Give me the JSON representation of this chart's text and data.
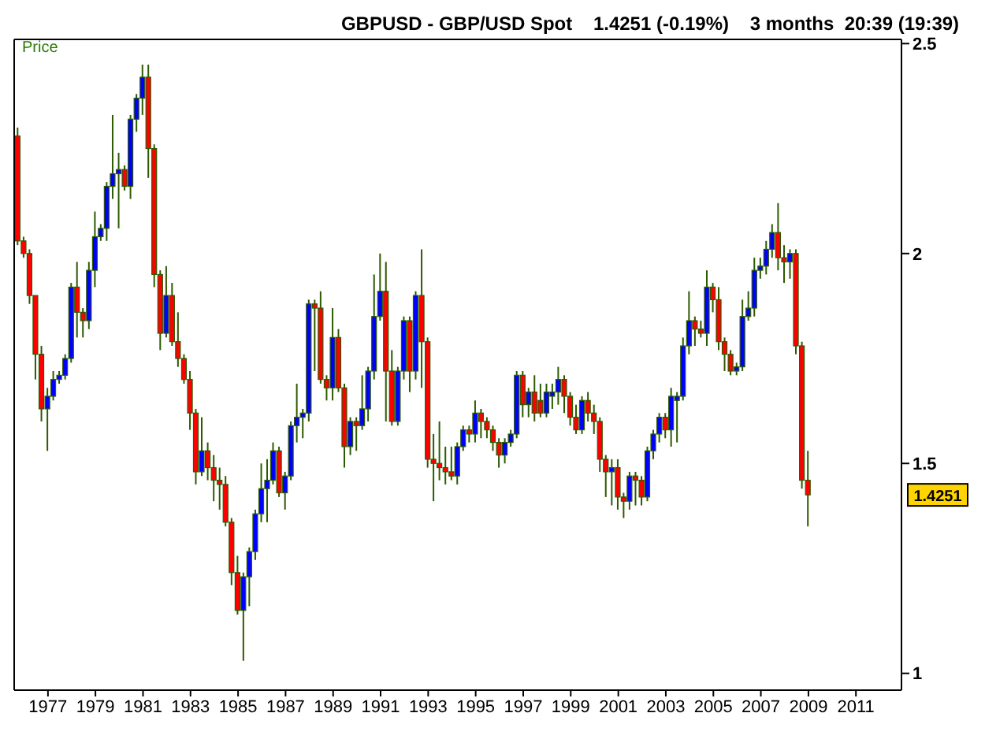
{
  "chart_data": {
    "type": "candlestick",
    "title": "GBPUSD - GBP/USD Spot    1.4251 (-0.19%)    3 months  20:39 (19:39)",
    "ylabel": "Price",
    "x": [
      "1975-10",
      "1976-01",
      "1976-04",
      "1976-07",
      "1976-10",
      "1977-01",
      "1977-04",
      "1977-07",
      "1977-10",
      "1978-01",
      "1978-04",
      "1978-07",
      "1978-10",
      "1979-01",
      "1979-04",
      "1979-07",
      "1979-10",
      "1980-01",
      "1980-04",
      "1980-07",
      "1980-10",
      "1981-01",
      "1981-04",
      "1981-07",
      "1981-10",
      "1982-01",
      "1982-04",
      "1982-07",
      "1982-10",
      "1983-01",
      "1983-04",
      "1983-07",
      "1983-10",
      "1984-01",
      "1984-04",
      "1984-07",
      "1984-10",
      "1985-01",
      "1985-04",
      "1985-07",
      "1985-10",
      "1986-01",
      "1986-04",
      "1986-07",
      "1986-10",
      "1987-01",
      "1987-04",
      "1987-07",
      "1987-10",
      "1988-01",
      "1988-04",
      "1988-07",
      "1988-10",
      "1989-01",
      "1989-04",
      "1989-07",
      "1989-10",
      "1990-01",
      "1990-04",
      "1990-07",
      "1990-10",
      "1991-01",
      "1991-04",
      "1991-07",
      "1991-10",
      "1992-01",
      "1992-04",
      "1992-07",
      "1992-10",
      "1993-01",
      "1993-04",
      "1993-07",
      "1993-10",
      "1994-01",
      "1994-04",
      "1994-07",
      "1994-10",
      "1995-01",
      "1995-04",
      "1995-07",
      "1995-10",
      "1996-01",
      "1996-04",
      "1996-07",
      "1996-10",
      "1997-01",
      "1997-04",
      "1997-07",
      "1997-10",
      "1998-01",
      "1998-04",
      "1998-07",
      "1998-10",
      "1999-01",
      "1999-04",
      "1999-07",
      "1999-10",
      "2000-01",
      "2000-04",
      "2000-07",
      "2000-10",
      "2001-01",
      "2001-04",
      "2001-07",
      "2001-10",
      "2002-01",
      "2002-04",
      "2002-07",
      "2002-10",
      "2003-01",
      "2003-04",
      "2003-07",
      "2003-10",
      "2004-01",
      "2004-04",
      "2004-07",
      "2004-10",
      "2005-01",
      "2005-04",
      "2005-07",
      "2005-10",
      "2006-01",
      "2006-04",
      "2006-07",
      "2006-10",
      "2007-01",
      "2007-04",
      "2007-07",
      "2007-10",
      "2008-01",
      "2008-04",
      "2008-07",
      "2008-10",
      "2009-01"
    ],
    "ohlc": [
      [
        2.28,
        2.3,
        2.02,
        2.03
      ],
      [
        2.03,
        2.04,
        1.99,
        2.0
      ],
      [
        2.0,
        2.01,
        1.88,
        1.9
      ],
      [
        1.9,
        1.9,
        1.7,
        1.76
      ],
      [
        1.76,
        1.78,
        1.6,
        1.63
      ],
      [
        1.63,
        1.68,
        1.53,
        1.66
      ],
      [
        1.66,
        1.72,
        1.65,
        1.7
      ],
      [
        1.7,
        1.72,
        1.69,
        1.71
      ],
      [
        1.71,
        1.76,
        1.7,
        1.75
      ],
      [
        1.75,
        1.93,
        1.74,
        1.92
      ],
      [
        1.92,
        1.98,
        1.8,
        1.86
      ],
      [
        1.86,
        1.87,
        1.8,
        1.84
      ],
      [
        1.84,
        1.98,
        1.82,
        1.96
      ],
      [
        1.96,
        2.1,
        1.92,
        2.04
      ],
      [
        2.04,
        2.07,
        2.03,
        2.06
      ],
      [
        2.06,
        2.17,
        2.03,
        2.16
      ],
      [
        2.16,
        2.33,
        2.13,
        2.19
      ],
      [
        2.19,
        2.24,
        2.06,
        2.2
      ],
      [
        2.2,
        2.21,
        2.15,
        2.16
      ],
      [
        2.16,
        2.33,
        2.13,
        2.32
      ],
      [
        2.32,
        2.38,
        2.29,
        2.37
      ],
      [
        2.37,
        2.45,
        2.33,
        2.42
      ],
      [
        2.42,
        2.45,
        2.18,
        2.25
      ],
      [
        2.25,
        2.26,
        1.92,
        1.95
      ],
      [
        1.95,
        1.96,
        1.77,
        1.81
      ],
      [
        1.81,
        1.97,
        1.8,
        1.9
      ],
      [
        1.9,
        1.93,
        1.78,
        1.79
      ],
      [
        1.79,
        1.86,
        1.73,
        1.75
      ],
      [
        1.75,
        1.76,
        1.69,
        1.7
      ],
      [
        1.7,
        1.72,
        1.58,
        1.62
      ],
      [
        1.62,
        1.63,
        1.45,
        1.48
      ],
      [
        1.48,
        1.61,
        1.47,
        1.53
      ],
      [
        1.53,
        1.55,
        1.46,
        1.49
      ],
      [
        1.49,
        1.52,
        1.41,
        1.46
      ],
      [
        1.46,
        1.49,
        1.39,
        1.45
      ],
      [
        1.45,
        1.47,
        1.35,
        1.36
      ],
      [
        1.36,
        1.37,
        1.21,
        1.24
      ],
      [
        1.24,
        1.28,
        1.14,
        1.15
      ],
      [
        1.15,
        1.24,
        1.03,
        1.23
      ],
      [
        1.23,
        1.3,
        1.16,
        1.29
      ],
      [
        1.29,
        1.39,
        1.27,
        1.38
      ],
      [
        1.38,
        1.5,
        1.36,
        1.44
      ],
      [
        1.44,
        1.51,
        1.36,
        1.46
      ],
      [
        1.46,
        1.55,
        1.45,
        1.53
      ],
      [
        1.53,
        1.54,
        1.42,
        1.43
      ],
      [
        1.43,
        1.48,
        1.39,
        1.47
      ],
      [
        1.47,
        1.6,
        1.46,
        1.59
      ],
      [
        1.59,
        1.69,
        1.55,
        1.61
      ],
      [
        1.61,
        1.63,
        1.56,
        1.62
      ],
      [
        1.62,
        1.89,
        1.6,
        1.88
      ],
      [
        1.88,
        1.89,
        1.72,
        1.87
      ],
      [
        1.87,
        1.91,
        1.69,
        1.7
      ],
      [
        1.7,
        1.71,
        1.65,
        1.68
      ],
      [
        1.68,
        1.87,
        1.65,
        1.8
      ],
      [
        1.8,
        1.82,
        1.67,
        1.68
      ],
      [
        1.68,
        1.69,
        1.49,
        1.54
      ],
      [
        1.54,
        1.61,
        1.52,
        1.6
      ],
      [
        1.6,
        1.61,
        1.53,
        1.59
      ],
      [
        1.59,
        1.71,
        1.58,
        1.63
      ],
      [
        1.63,
        1.73,
        1.6,
        1.72
      ],
      [
        1.72,
        1.95,
        1.7,
        1.85
      ],
      [
        1.85,
        2.0,
        1.84,
        1.91
      ],
      [
        1.91,
        1.98,
        1.6,
        1.72
      ],
      [
        1.72,
        1.77,
        1.59,
        1.6
      ],
      [
        1.6,
        1.73,
        1.59,
        1.72
      ],
      [
        1.72,
        1.85,
        1.7,
        1.84
      ],
      [
        1.84,
        1.85,
        1.67,
        1.72
      ],
      [
        1.72,
        1.91,
        1.7,
        1.9
      ],
      [
        1.9,
        2.01,
        1.68,
        1.79
      ],
      [
        1.79,
        1.8,
        1.49,
        1.51
      ],
      [
        1.51,
        1.57,
        1.41,
        1.5
      ],
      [
        1.5,
        1.6,
        1.46,
        1.49
      ],
      [
        1.49,
        1.54,
        1.45,
        1.48
      ],
      [
        1.48,
        1.54,
        1.46,
        1.47
      ],
      [
        1.47,
        1.55,
        1.45,
        1.54
      ],
      [
        1.54,
        1.59,
        1.53,
        1.58
      ],
      [
        1.58,
        1.59,
        1.55,
        1.57
      ],
      [
        1.57,
        1.65,
        1.55,
        1.62
      ],
      [
        1.62,
        1.63,
        1.56,
        1.6
      ],
      [
        1.6,
        1.61,
        1.56,
        1.58
      ],
      [
        1.58,
        1.59,
        1.53,
        1.55
      ],
      [
        1.55,
        1.56,
        1.49,
        1.52
      ],
      [
        1.52,
        1.56,
        1.5,
        1.55
      ],
      [
        1.55,
        1.58,
        1.54,
        1.57
      ],
      [
        1.57,
        1.72,
        1.56,
        1.71
      ],
      [
        1.71,
        1.72,
        1.61,
        1.64
      ],
      [
        1.64,
        1.68,
        1.61,
        1.67
      ],
      [
        1.67,
        1.71,
        1.6,
        1.62
      ],
      [
        1.65,
        1.69,
        1.61,
        1.62
      ],
      [
        1.62,
        1.69,
        1.61,
        1.67
      ],
      [
        1.66,
        1.69,
        1.63,
        1.67
      ],
      [
        1.67,
        1.73,
        1.64,
        1.7
      ],
      [
        1.7,
        1.71,
        1.62,
        1.66
      ],
      [
        1.66,
        1.67,
        1.59,
        1.61
      ],
      [
        1.61,
        1.64,
        1.57,
        1.58
      ],
      [
        1.58,
        1.66,
        1.57,
        1.65
      ],
      [
        1.65,
        1.67,
        1.6,
        1.62
      ],
      [
        1.62,
        1.64,
        1.57,
        1.6
      ],
      [
        1.6,
        1.61,
        1.48,
        1.51
      ],
      [
        1.51,
        1.52,
        1.42,
        1.48
      ],
      [
        1.48,
        1.51,
        1.4,
        1.49
      ],
      [
        1.49,
        1.51,
        1.39,
        1.42
      ],
      [
        1.42,
        1.43,
        1.37,
        1.41
      ],
      [
        1.41,
        1.48,
        1.39,
        1.47
      ],
      [
        1.47,
        1.48,
        1.4,
        1.46
      ],
      [
        1.46,
        1.47,
        1.4,
        1.42
      ],
      [
        1.42,
        1.54,
        1.41,
        1.53
      ],
      [
        1.53,
        1.58,
        1.51,
        1.57
      ],
      [
        1.57,
        1.62,
        1.55,
        1.61
      ],
      [
        1.61,
        1.62,
        1.56,
        1.58
      ],
      [
        1.58,
        1.68,
        1.54,
        1.66
      ],
      [
        1.65,
        1.67,
        1.55,
        1.66
      ],
      [
        1.66,
        1.8,
        1.65,
        1.78
      ],
      [
        1.78,
        1.91,
        1.76,
        1.84
      ],
      [
        1.84,
        1.85,
        1.78,
        1.82
      ],
      [
        1.82,
        1.84,
        1.8,
        1.81
      ],
      [
        1.81,
        1.96,
        1.78,
        1.92
      ],
      [
        1.92,
        1.93,
        1.86,
        1.89
      ],
      [
        1.89,
        1.92,
        1.77,
        1.79
      ],
      [
        1.79,
        1.8,
        1.72,
        1.76
      ],
      [
        1.76,
        1.77,
        1.71,
        1.72
      ],
      [
        1.72,
        1.74,
        1.71,
        1.73
      ],
      [
        1.73,
        1.89,
        1.72,
        1.85
      ],
      [
        1.85,
        1.91,
        1.84,
        1.87
      ],
      [
        1.87,
        1.99,
        1.85,
        1.96
      ],
      [
        1.96,
        1.99,
        1.94,
        1.97
      ],
      [
        1.97,
        2.03,
        1.95,
        2.01
      ],
      [
        2.01,
        2.07,
        1.99,
        2.05
      ],
      [
        2.05,
        2.12,
        1.96,
        1.99
      ],
      [
        1.99,
        2.02,
        1.93,
        1.98
      ],
      [
        1.98,
        2.01,
        1.94,
        2.0
      ],
      [
        2.0,
        2.01,
        1.76,
        1.78
      ],
      [
        1.78,
        1.79,
        1.44,
        1.46
      ],
      [
        1.46,
        1.53,
        1.35,
        1.4251
      ]
    ],
    "colors": [
      "#ff0000",
      "#ff0000",
      "#ff0000",
      "#ff0000",
      "#ff0000",
      "#0000ff",
      "#0000ff",
      "#0000ff",
      "#0000ff",
      "#0000ff",
      "#ff0000",
      "#ff0000",
      "#0000ff",
      "#0000ff",
      "#0000ff",
      "#0000ff",
      "#0000ff",
      "#0000ff",
      "#ff0000",
      "#0000ff",
      "#0000ff",
      "#0000ff",
      "#ff0000",
      "#ff0000",
      "#ff0000",
      "#0000ff",
      "#ff0000",
      "#ff0000",
      "#ff0000",
      "#ff0000",
      "#ff0000",
      "#0000ff",
      "#ff0000",
      "#ff0000",
      "#ff0000",
      "#ff0000",
      "#ff0000",
      "#ff0000",
      "#0000ff",
      "#0000ff",
      "#0000ff",
      "#0000ff",
      "#0000ff",
      "#0000ff",
      "#ff0000",
      "#0000ff",
      "#0000ff",
      "#0000ff",
      "#0000ff",
      "#0000ff",
      "#ff0000",
      "#ff0000",
      "#ff0000",
      "#0000ff",
      "#ff0000",
      "#ff0000",
      "#0000ff",
      "#ff0000",
      "#0000ff",
      "#0000ff",
      "#0000ff",
      "#0000ff",
      "#ff0000",
      "#ff0000",
      "#0000ff",
      "#0000ff",
      "#ff0000",
      "#0000ff",
      "#ff0000",
      "#ff0000",
      "#ff0000",
      "#ff0000",
      "#ff0000",
      "#ff0000",
      "#0000ff",
      "#0000ff",
      "#ff0000",
      "#0000ff",
      "#ff0000",
      "#ff0000",
      "#ff0000",
      "#ff0000",
      "#0000ff",
      "#0000ff",
      "#0000ff",
      "#ff0000",
      "#0000ff",
      "#ff0000",
      "#ff0000",
      "#0000ff",
      "#0000ff",
      "#0000ff",
      "#ff0000",
      "#ff0000",
      "#ff0000",
      "#0000ff",
      "#ff0000",
      "#ff0000",
      "#ff0000",
      "#ff0000",
      "#0000ff",
      "#ff0000",
      "#ff0000",
      "#0000ff",
      "#ff0000",
      "#ff0000",
      "#0000ff",
      "#0000ff",
      "#0000ff",
      "#ff0000",
      "#0000ff",
      "#0000ff",
      "#0000ff",
      "#0000ff",
      "#ff0000",
      "#ff0000",
      "#0000ff",
      "#ff0000",
      "#ff0000",
      "#ff0000",
      "#ff0000",
      "#0000ff",
      "#0000ff",
      "#0000ff",
      "#0000ff",
      "#0000ff",
      "#0000ff",
      "#0000ff",
      "#ff0000",
      "#ff0000",
      "#0000ff",
      "#ff0000",
      "#ff0000",
      "#ff0000"
    ],
    "color": "#2d5a00",
    "xlim": [
      "1975-08",
      "2012-12"
    ],
    "xticks": [
      "1977",
      "1979",
      "1981",
      "1983",
      "1985",
      "1987",
      "1989",
      "1991",
      "1993",
      "1995",
      "1997",
      "1999",
      "2001",
      "2003",
      "2005",
      "2007",
      "2009",
      "2011"
    ],
    "ylim": [
      0.96,
      2.51
    ],
    "yticks": [
      1,
      1.5,
      2,
      2.5
    ],
    "annotations": [
      "1.4251"
    ]
  }
}
